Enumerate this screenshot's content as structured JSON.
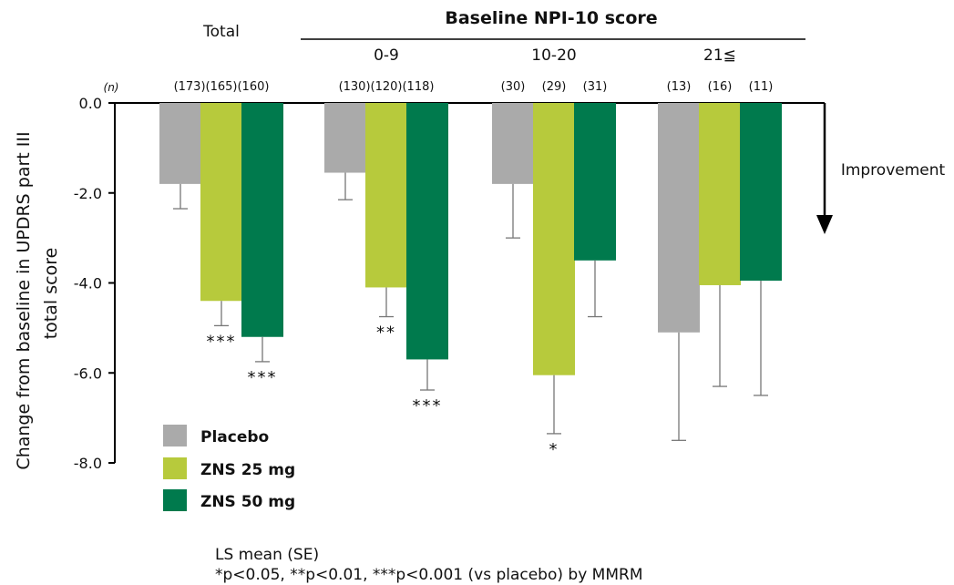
{
  "chart_data": {
    "type": "bar",
    "ylabel_line1": "Change from baseline in UPDRS part III",
    "ylabel_line2": "total score",
    "ylim": [
      -8,
      0
    ],
    "yticks": [
      "0.0",
      "-2.0",
      "-4.0",
      "-6.0",
      "-8.0"
    ],
    "ytick_values": [
      0,
      -2,
      -4,
      -6,
      -8
    ],
    "n_label": "(n)",
    "grouping_header": "Baseline NPI-10 score",
    "groups": [
      {
        "name": "Total",
        "n": [
          "(173)(165)(160)"
        ],
        "values": [
          -1.8,
          -4.4,
          -5.2
        ],
        "se_ends": [
          -2.35,
          -4.95,
          -5.75
        ],
        "sig": [
          "",
          "***",
          "***"
        ]
      },
      {
        "name": "0-9",
        "n": [
          "(130)(120)(118)"
        ],
        "values": [
          -1.55,
          -4.1,
          -5.7
        ],
        "se_ends": [
          -2.15,
          -4.75,
          -6.38
        ],
        "sig": [
          "",
          "**",
          "***"
        ]
      },
      {
        "name": "10-20",
        "n": [
          "(30)",
          "(29)",
          "(31)"
        ],
        "values": [
          -1.8,
          -6.05,
          -3.5
        ],
        "se_ends": [
          -3.0,
          -7.35,
          -4.75
        ],
        "sig": [
          "",
          "*",
          ""
        ]
      },
      {
        "name": "21≦",
        "n": [
          "(13)",
          "(16)",
          "(11)"
        ],
        "values": [
          -5.1,
          -4.05,
          -3.95
        ],
        "se_ends": [
          -7.5,
          -6.3,
          -6.5
        ],
        "sig": [
          "",
          "",
          ""
        ]
      }
    ],
    "series": [
      {
        "name": "Placebo",
        "color": "#aaaaaa"
      },
      {
        "name": "ZNS 25 mg",
        "color": "#b7ca3c"
      },
      {
        "name": "ZNS 50 mg",
        "color": "#007a4d"
      }
    ],
    "legend_position": "bottom-left",
    "direction_label": "Improvement",
    "footnote_line1": "LS mean (SE)",
    "footnote_line2": "*p<0.05, **p<0.01, ***p<0.001 (vs placebo) by MMRM"
  }
}
